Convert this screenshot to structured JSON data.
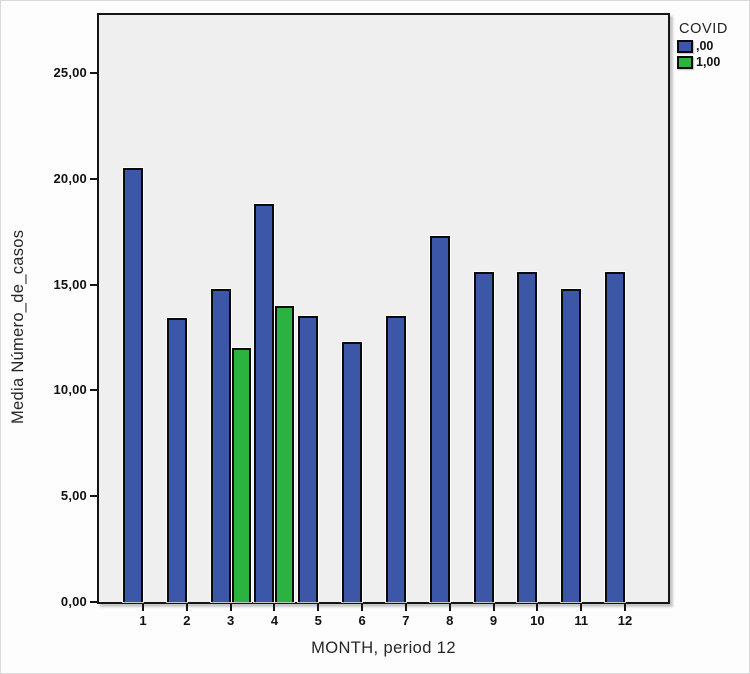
{
  "chart_data": {
    "type": "bar",
    "title": "",
    "xlabel": "MONTH, period 12",
    "ylabel": "Media Número_de_casos",
    "categories": [
      "1",
      "2",
      "3",
      "4",
      "5",
      "6",
      "7",
      "8",
      "9",
      "10",
      "11",
      "12"
    ],
    "series": [
      {
        "name": ",00",
        "color": "#3c57a8",
        "values": [
          20.5,
          13.4,
          14.8,
          18.8,
          13.5,
          12.3,
          13.5,
          17.3,
          15.6,
          15.6,
          14.8,
          15.6
        ]
      },
      {
        "name": "1,00",
        "color": "#2cb240",
        "values": [
          null,
          null,
          12.0,
          14.0,
          null,
          null,
          null,
          null,
          null,
          null,
          null,
          null
        ]
      }
    ],
    "ylim": [
      0,
      27.8
    ],
    "yticks": [
      {
        "label": "0,00",
        "value": 0
      },
      {
        "label": "5,00",
        "value": 5
      },
      {
        "label": "10,00",
        "value": 10
      },
      {
        "label": "15,00",
        "value": 15
      },
      {
        "label": "20,00",
        "value": 20
      },
      {
        "label": "25,00",
        "value": 25
      }
    ],
    "grid": false,
    "legend": {
      "title": "COVID",
      "position": "top-right",
      "entries": [
        {
          "label": ",00",
          "color": "#3c57a8"
        },
        {
          "label": "1,00",
          "color": "#2cb240"
        }
      ]
    },
    "plot_background": "#efefef",
    "frame_color": "#151515"
  }
}
